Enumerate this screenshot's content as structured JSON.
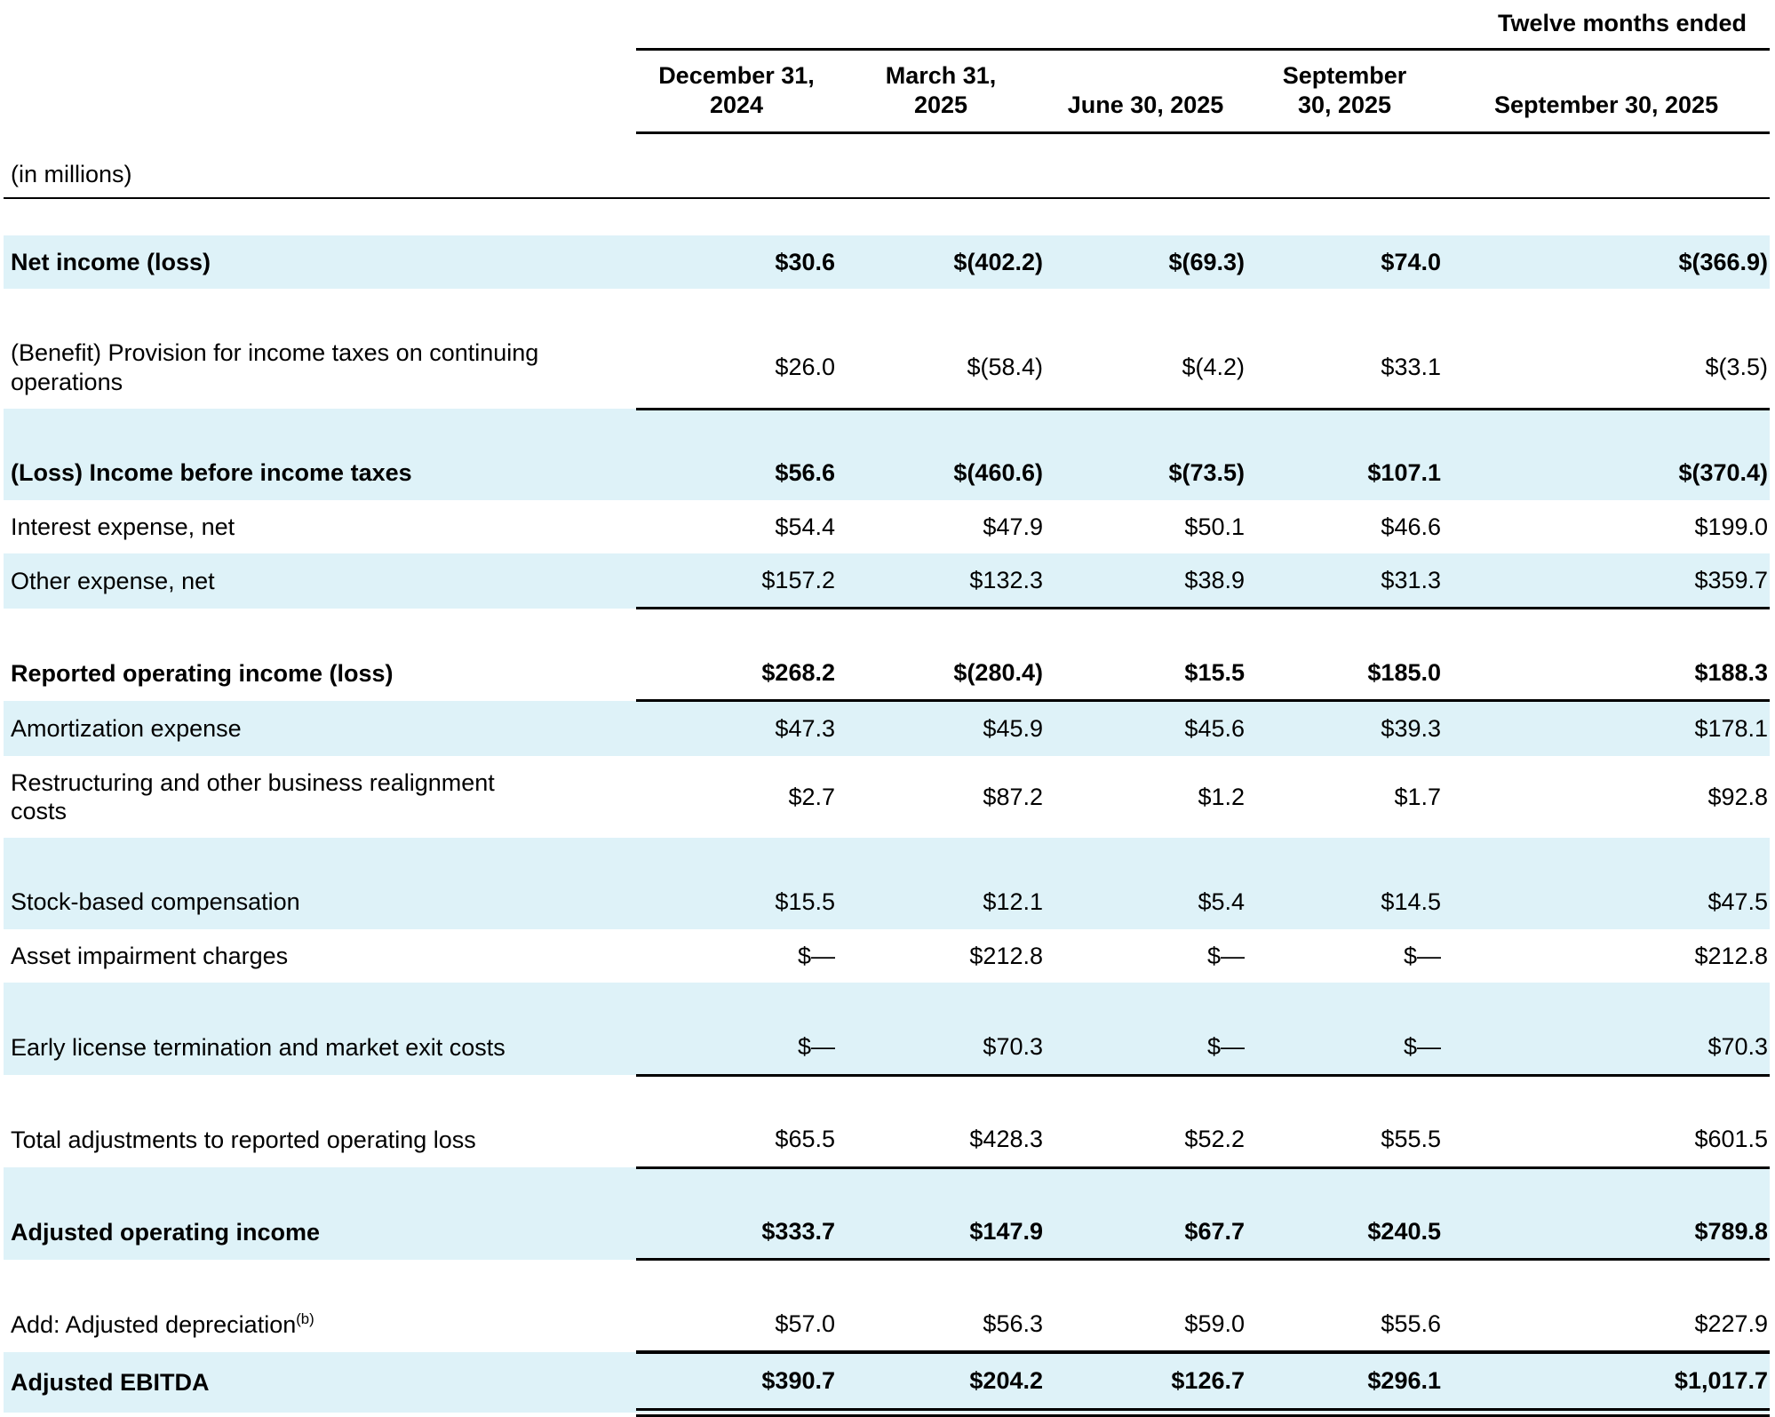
{
  "table": {
    "period_label": "Twelve months ended",
    "units_label": "(in millions)",
    "columns": [
      "December 31,\n2024",
      "March 31,\n2025",
      "June 30, 2025",
      "September\n30, 2025",
      "September 30, 2025"
    ],
    "colors": {
      "stripe": "#def2f8",
      "text": "#000000",
      "rule": "#000000"
    },
    "rows": [
      {
        "spacer": true,
        "shade": false
      },
      {
        "label": "Net income (loss)",
        "bold": true,
        "shade": true,
        "values": [
          "$30.6",
          "$(402.2)",
          "$(69.3)",
          "$74.0",
          "$(366.9)"
        ]
      },
      {
        "spacer": true,
        "shade": false
      },
      {
        "label": "(Benefit) Provision for income taxes on continuing\noperations",
        "bold": false,
        "shade": false,
        "values": [
          "$26.0",
          "$(58.4)",
          "$(4.2)",
          "$33.1",
          "$(3.5)"
        ],
        "rule": "single"
      },
      {
        "spacer": true,
        "shade": true
      },
      {
        "label": "(Loss) Income before income taxes",
        "bold": true,
        "shade": true,
        "values": [
          "$56.6",
          "$(460.6)",
          "$(73.5)",
          "$107.1",
          "$(370.4)"
        ]
      },
      {
        "label": "Interest expense, net",
        "bold": false,
        "shade": false,
        "values": [
          "$54.4",
          "$47.9",
          "$50.1",
          "$46.6",
          "$199.0"
        ]
      },
      {
        "label": "Other expense, net",
        "bold": false,
        "shade": true,
        "values": [
          "$157.2",
          "$132.3",
          "$38.9",
          "$31.3",
          "$359.7"
        ],
        "rule": "single"
      },
      {
        "spacer": true,
        "shade": false
      },
      {
        "label": "Reported operating income (loss)",
        "bold": true,
        "shade": false,
        "values": [
          "$268.2",
          "$(280.4)",
          "$15.5",
          "$185.0",
          "$188.3"
        ],
        "rule": "single"
      },
      {
        "label": "Amortization expense",
        "bold": false,
        "shade": true,
        "values": [
          "$47.3",
          "$45.9",
          "$45.6",
          "$39.3",
          "$178.1"
        ]
      },
      {
        "label": "Restructuring and other business realignment\ncosts",
        "bold": false,
        "shade": false,
        "values": [
          "$2.7",
          "$87.2",
          "$1.2",
          "$1.7",
          "$92.8"
        ]
      },
      {
        "spacer": true,
        "shade": true
      },
      {
        "label": "Stock-based compensation",
        "bold": false,
        "shade": true,
        "values": [
          "$15.5",
          "$12.1",
          "$5.4",
          "$14.5",
          "$47.5"
        ]
      },
      {
        "label": "Asset impairment charges",
        "bold": false,
        "shade": false,
        "values": [
          "$—",
          "$212.8",
          "$—",
          "$—",
          "$212.8"
        ]
      },
      {
        "spacer": true,
        "shade": true
      },
      {
        "label": "Early license termination and market exit costs",
        "bold": false,
        "shade": true,
        "values": [
          "$—",
          "$70.3",
          "$—",
          "$—",
          "$70.3"
        ],
        "rule": "single"
      },
      {
        "spacer": true,
        "shade": false
      },
      {
        "label": "Total adjustments to reported operating loss",
        "bold": false,
        "shade": false,
        "values": [
          "$65.5",
          "$428.3",
          "$52.2",
          "$55.5",
          "$601.5"
        ],
        "rule": "single"
      },
      {
        "spacer": true,
        "shade": true
      },
      {
        "label": "Adjusted operating income",
        "bold": true,
        "shade": true,
        "values": [
          "$333.7",
          "$147.9",
          "$67.7",
          "$240.5",
          "$789.8"
        ],
        "rule": "single"
      },
      {
        "spacer": true,
        "shade": false
      },
      {
        "label": "Add: Adjusted depreciation",
        "sup": "(b)",
        "bold": false,
        "shade": false,
        "values": [
          "$57.0",
          "$56.3",
          "$59.0",
          "$55.6",
          "$227.9"
        ],
        "rule": "thick"
      },
      {
        "label": "Adjusted EBITDA",
        "bold": true,
        "shade": true,
        "values": [
          "$390.7",
          "$204.2",
          "$126.7",
          "$296.1",
          "$1,017.7"
        ],
        "rule": "double"
      }
    ]
  }
}
